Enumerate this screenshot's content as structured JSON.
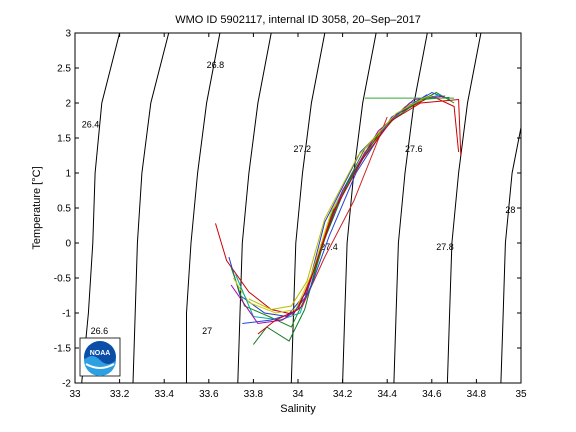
{
  "chart_data": {
    "type": "line",
    "title": "WMO ID 5902117, internal ID 3058, 20–Sep–2017",
    "xlabel": "Salinity",
    "ylabel": "Temperature [°C]",
    "xlim": [
      33,
      35
    ],
    "ylim": [
      -2,
      3
    ],
    "xticks": [
      33,
      33.2,
      33.4,
      33.6,
      33.8,
      34,
      34.2,
      34.4,
      34.6,
      34.8,
      35
    ],
    "yticks": [
      -2,
      -1.5,
      -1,
      -0.5,
      0,
      0.5,
      1,
      1.5,
      2,
      2.5,
      3
    ],
    "xtick_labels": [
      "33",
      "33.2",
      "33.4",
      "33.6",
      "33.8",
      "34",
      "34.2",
      "34.4",
      "34.6",
      "34.8",
      "35"
    ],
    "ytick_labels": [
      "-2",
      "-1.5",
      "-1",
      "-0.5",
      "0",
      "0.5",
      "1",
      "1.5",
      "2",
      "2.5",
      "3"
    ],
    "grid": false,
    "logo": "noaa-logo",
    "density_contours": [
      {
        "label": "26.4",
        "points": [
          [
            33.03,
            -2
          ],
          [
            33.06,
            -1.0
          ],
          [
            33.08,
            0
          ],
          [
            33.09,
            1.0
          ],
          [
            33.12,
            2.0
          ],
          [
            33.2,
            3.0
          ]
        ],
        "label_at": [
          33.03,
          1.65
        ]
      },
      {
        "label": "26.6",
        "points": [
          [
            33.26,
            -2
          ],
          [
            33.27,
            -1.0
          ],
          [
            33.28,
            0
          ],
          [
            33.3,
            1.0
          ],
          [
            33.34,
            2.0
          ],
          [
            33.42,
            3.0
          ]
        ],
        "label_at": [
          33.07,
          -1.3
        ]
      },
      {
        "label": "26.8",
        "points": [
          [
            33.5,
            -2
          ],
          [
            33.5,
            -1.0
          ],
          [
            33.52,
            0
          ],
          [
            33.55,
            1.0
          ],
          [
            33.59,
            2.0
          ],
          [
            33.65,
            3.0
          ]
        ],
        "label_at": [
          33.59,
          2.5
        ]
      },
      {
        "label": "27",
        "points": [
          [
            33.73,
            -2
          ],
          [
            33.74,
            -1.0
          ],
          [
            33.75,
            0
          ],
          [
            33.78,
            1.0
          ],
          [
            33.82,
            2.0
          ],
          [
            33.88,
            3.0
          ]
        ],
        "label_at": [
          33.57,
          -1.3
        ]
      },
      {
        "label": "27.2",
        "points": [
          [
            33.97,
            -2
          ],
          [
            33.98,
            -1.0
          ],
          [
            33.99,
            0
          ],
          [
            34.02,
            1.0
          ],
          [
            34.06,
            2.0
          ],
          [
            34.12,
            3.0
          ]
        ],
        "label_at": [
          33.98,
          1.3
        ]
      },
      {
        "label": "27.4",
        "points": [
          [
            34.2,
            -2
          ],
          [
            34.21,
            -1.0
          ],
          [
            34.22,
            0
          ],
          [
            34.25,
            1.0
          ],
          [
            34.29,
            2.0
          ],
          [
            34.35,
            3.0
          ]
        ],
        "label_at": [
          34.1,
          -0.1
        ]
      },
      {
        "label": "27.6",
        "points": [
          [
            34.43,
            -2
          ],
          [
            34.44,
            -1.0
          ],
          [
            34.45,
            0
          ],
          [
            34.48,
            1.0
          ],
          [
            34.52,
            2.0
          ],
          [
            34.58,
            3.0
          ]
        ],
        "label_at": [
          34.48,
          1.3
        ]
      },
      {
        "label": "27.8",
        "points": [
          [
            34.67,
            -2
          ],
          [
            34.68,
            -1.0
          ],
          [
            34.69,
            0
          ],
          [
            34.72,
            1.0
          ],
          [
            34.76,
            2.0
          ],
          [
            34.82,
            3.0
          ]
        ],
        "label_at": [
          34.62,
          -0.1
        ]
      },
      {
        "label": "28",
        "points": [
          [
            34.91,
            -2
          ],
          [
            34.92,
            -1.0
          ],
          [
            34.93,
            0
          ],
          [
            34.96,
            1.0
          ],
          [
            35.0,
            1.65
          ]
        ],
        "label_at": [
          34.93,
          0.43
        ]
      }
    ],
    "series": [
      {
        "color": "#cc0000",
        "points": [
          [
            33.63,
            0.28
          ],
          [
            33.68,
            -0.25
          ],
          [
            33.78,
            -0.7
          ],
          [
            33.88,
            -0.95
          ],
          [
            33.98,
            -1.02
          ],
          [
            34.05,
            -0.6
          ],
          [
            34.15,
            0.4
          ],
          [
            34.3,
            1.3
          ],
          [
            34.45,
            1.85
          ],
          [
            34.6,
            2.1
          ],
          [
            34.7,
            1.95
          ],
          [
            34.72,
            1.3
          ]
        ]
      },
      {
        "color": "#1f3bd1",
        "points": [
          [
            33.69,
            -0.2
          ],
          [
            33.74,
            -0.75
          ],
          [
            33.85,
            -1.0
          ],
          [
            33.95,
            -1.05
          ],
          [
            34.04,
            -0.7
          ],
          [
            34.12,
            0.3
          ],
          [
            34.28,
            1.3
          ],
          [
            34.45,
            1.85
          ],
          [
            34.6,
            2.15
          ],
          [
            34.68,
            2.05
          ]
        ]
      },
      {
        "color": "#1a8a1a",
        "points": [
          [
            33.7,
            -0.35
          ],
          [
            33.76,
            -0.9
          ],
          [
            33.87,
            -1.05
          ],
          [
            33.97,
            -1.2
          ],
          [
            34.06,
            -0.6
          ],
          [
            34.16,
            0.5
          ],
          [
            34.3,
            1.35
          ],
          [
            34.47,
            1.9
          ],
          [
            34.62,
            2.15
          ],
          [
            34.7,
            2.0
          ]
        ]
      },
      {
        "color": "#cccc00",
        "points": [
          [
            33.71,
            -0.5
          ],
          [
            33.78,
            -0.85
          ],
          [
            33.9,
            -1.0
          ],
          [
            33.99,
            -0.95
          ],
          [
            34.06,
            -0.45
          ],
          [
            34.15,
            0.45
          ],
          [
            34.32,
            1.4
          ],
          [
            34.48,
            1.95
          ],
          [
            34.6,
            2.1
          ]
        ]
      },
      {
        "color": "#00aaaa",
        "points": [
          [
            33.72,
            -0.45
          ],
          [
            33.8,
            -1.05
          ],
          [
            33.92,
            -1.1
          ],
          [
            34.01,
            -1.0
          ],
          [
            34.08,
            -0.3
          ],
          [
            34.18,
            0.6
          ],
          [
            34.34,
            1.5
          ],
          [
            34.5,
            2.0
          ],
          [
            34.64,
            2.12
          ]
        ]
      },
      {
        "color": "#aa00aa",
        "points": [
          [
            33.7,
            -0.6
          ],
          [
            33.82,
            -1.15
          ],
          [
            33.93,
            -1.1
          ],
          [
            34.02,
            -0.9
          ],
          [
            34.09,
            -0.2
          ],
          [
            34.2,
            0.75
          ],
          [
            34.36,
            1.6
          ],
          [
            34.52,
            2.05
          ],
          [
            34.66,
            2.1
          ]
        ]
      },
      {
        "color": "#0a7a20",
        "points": [
          [
            33.8,
            -1.45
          ],
          [
            33.86,
            -1.2
          ],
          [
            33.96,
            -1.4
          ],
          [
            34.03,
            -0.95
          ],
          [
            34.1,
            -0.1
          ],
          [
            34.22,
            0.85
          ],
          [
            34.38,
            1.65
          ],
          [
            34.55,
            2.05
          ],
          [
            34.68,
            2.08
          ]
        ]
      },
      {
        "color": "#cc2222",
        "points": [
          [
            34.02,
            -0.9
          ],
          [
            34.12,
            -0.2
          ],
          [
            34.25,
            0.6
          ],
          [
            34.35,
            1.4
          ],
          [
            34.4,
            1.8
          ]
        ]
      },
      {
        "color": "#2244dd",
        "points": [
          [
            33.75,
            -1.15
          ],
          [
            33.88,
            -1.1
          ],
          [
            33.98,
            -1.0
          ],
          [
            34.05,
            -0.7
          ],
          [
            34.14,
            0.1
          ],
          [
            34.26,
            1.0
          ],
          [
            34.42,
            1.8
          ],
          [
            34.58,
            2.12
          ]
        ]
      },
      {
        "color": "#33aa33",
        "points": [
          [
            34.3,
            2.07
          ],
          [
            34.6,
            2.07
          ],
          [
            34.7,
            2.07
          ]
        ]
      },
      {
        "color": "#bbbb00",
        "points": [
          [
            33.78,
            -0.8
          ],
          [
            33.88,
            -0.95
          ],
          [
            33.97,
            -0.9
          ],
          [
            34.04,
            -0.55
          ],
          [
            34.12,
            0.35
          ],
          [
            34.27,
            1.25
          ],
          [
            34.44,
            1.85
          ],
          [
            34.58,
            2.1
          ]
        ]
      },
      {
        "color": "#cc0000",
        "points": [
          [
            33.82,
            -1.3
          ],
          [
            33.9,
            -1.1
          ],
          [
            34.0,
            -0.95
          ],
          [
            34.07,
            -0.4
          ],
          [
            34.16,
            0.45
          ],
          [
            34.29,
            1.2
          ],
          [
            34.42,
            1.75
          ],
          [
            34.55,
            2.0
          ],
          [
            34.72,
            2.05
          ],
          [
            34.73,
            1.25
          ]
        ]
      }
    ]
  }
}
